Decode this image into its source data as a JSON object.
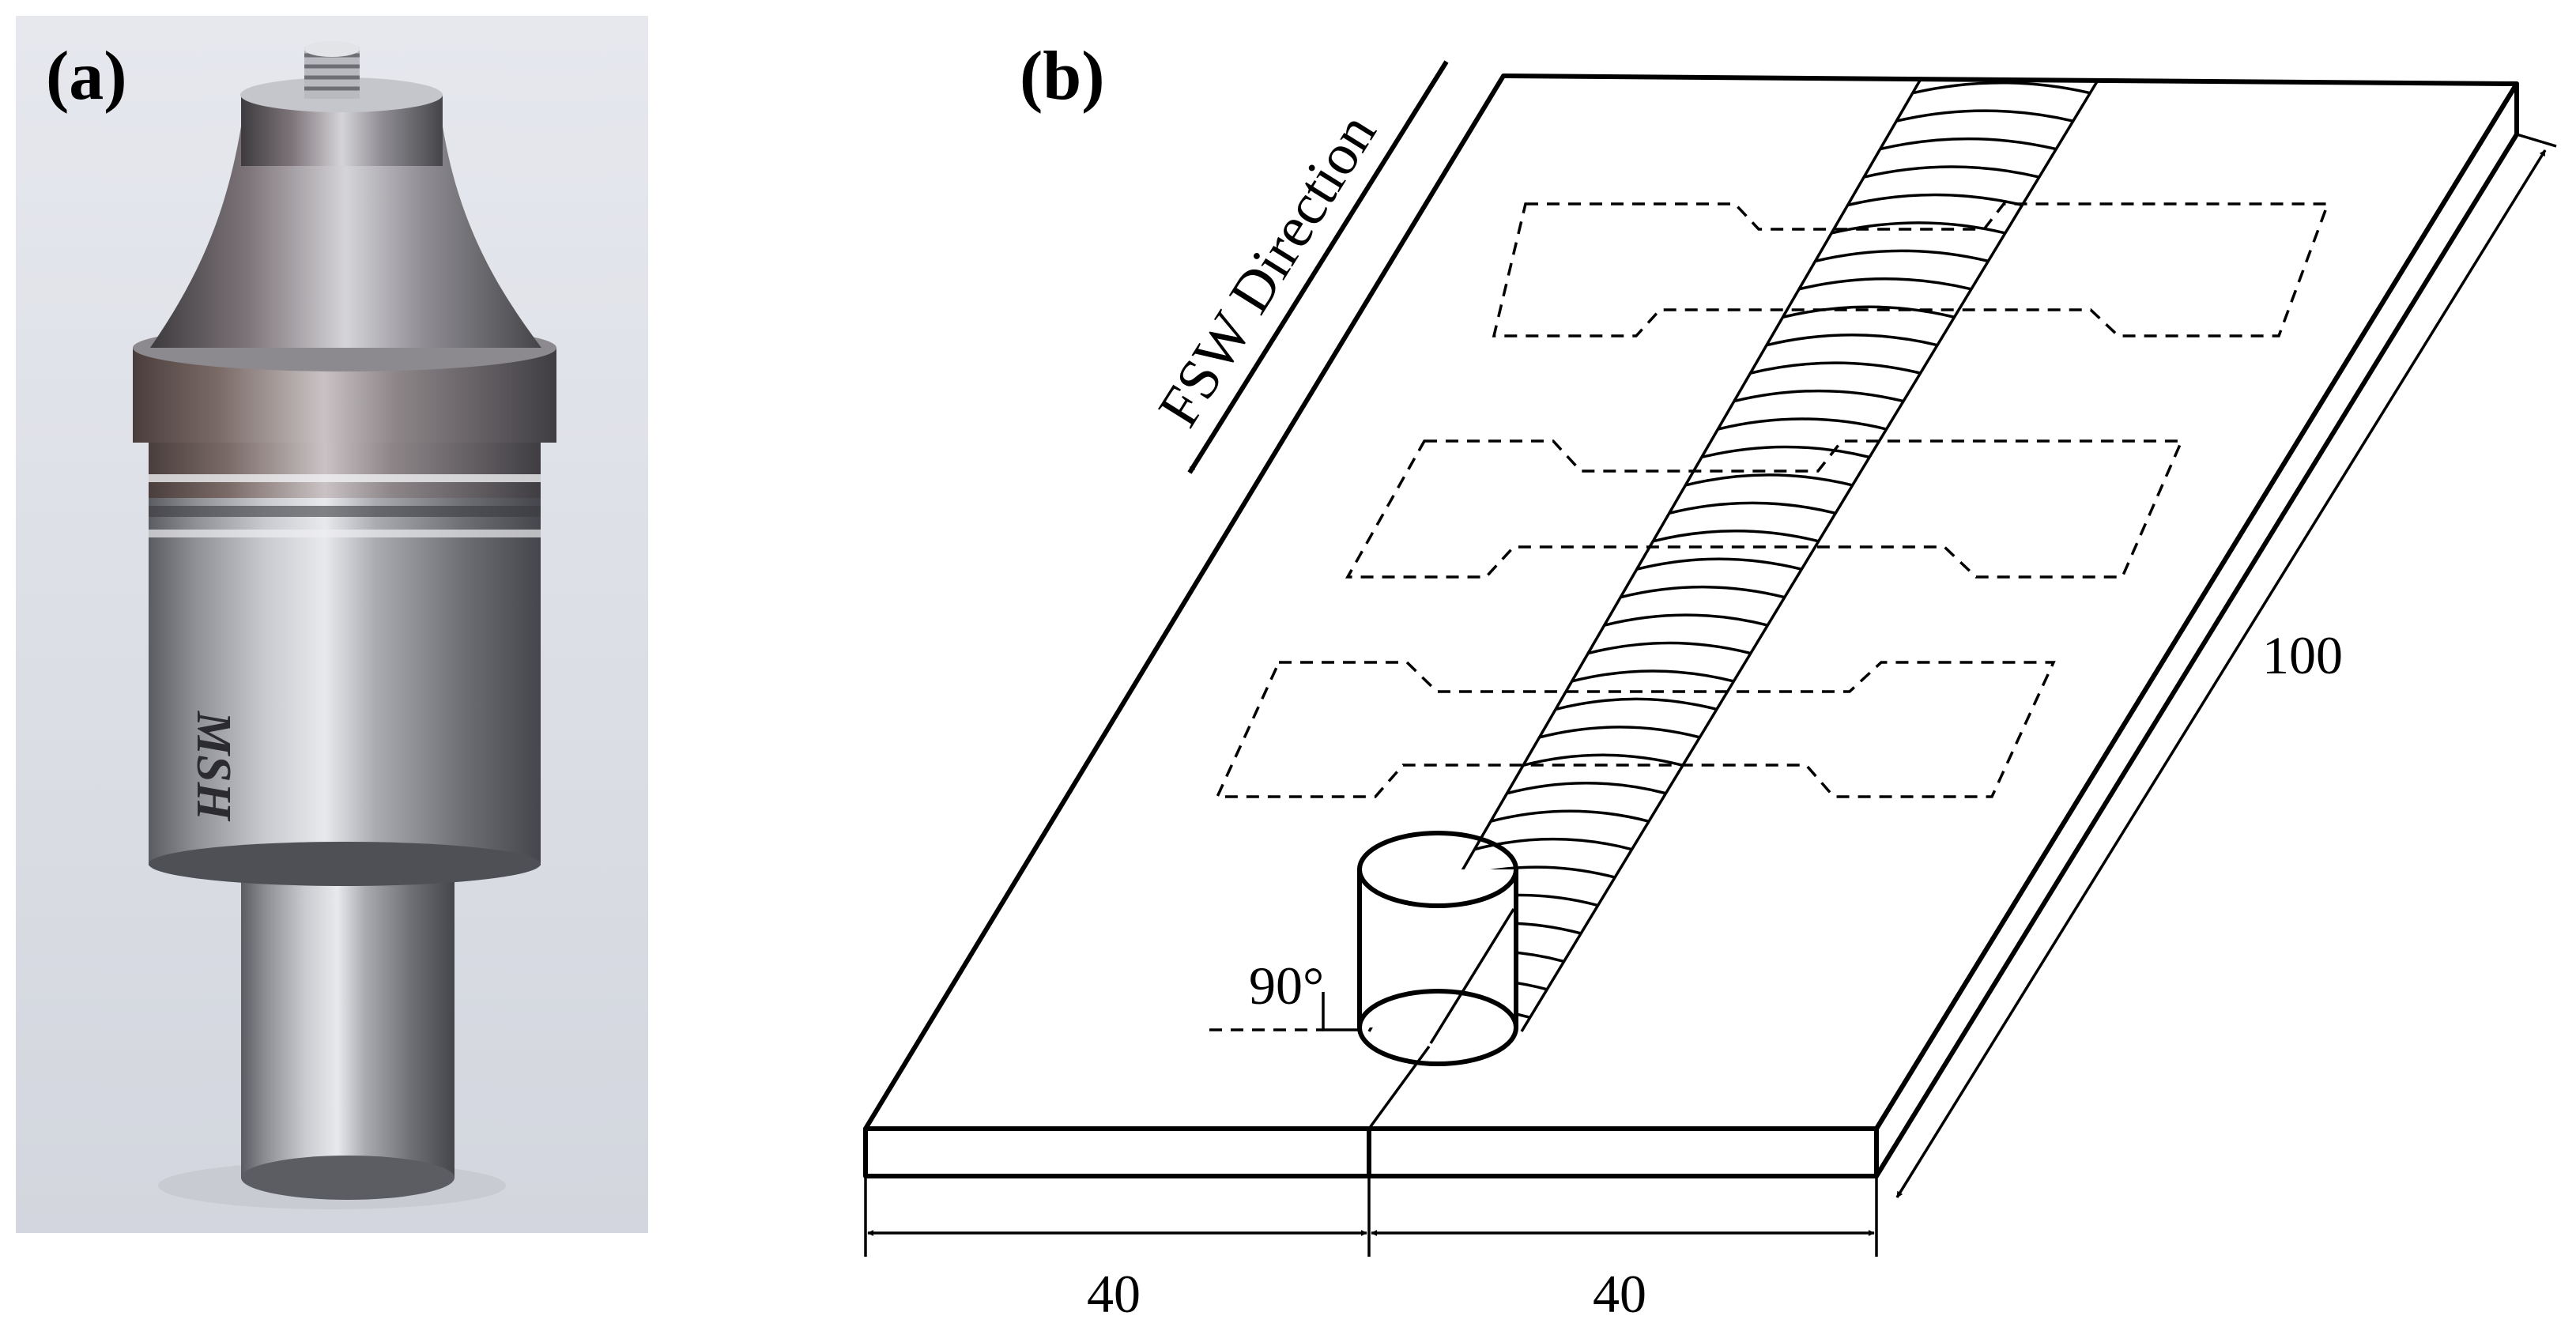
{
  "panels": {
    "a": {
      "label": "(a)",
      "photo_engraving": "MSH"
    },
    "b": {
      "label": "(b)"
    }
  },
  "diagram": {
    "direction_label": "FSW Direction",
    "angle_label": "90°",
    "dimensions": {
      "length": "100",
      "width_left": "40",
      "width_right": "40"
    },
    "specimen_count": 3
  },
  "colors": {
    "background": "#ffffff",
    "photo_backdrop": "#dcdee6",
    "tool_metal": "#9a9ca3",
    "line": "#000000"
  }
}
